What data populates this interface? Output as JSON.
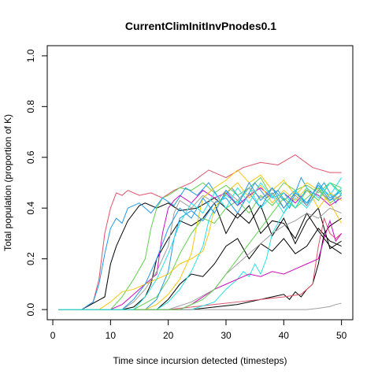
{
  "chart_data": {
    "type": "line",
    "title": "CurrentClimInitInvPnodes0.1",
    "xlabel": "Time since incursion detected (timesteps)",
    "ylabel": "Total population (proportion of K)",
    "xlim": [
      -0.96,
      51.96
    ],
    "ylim": [
      -0.04,
      1.04
    ],
    "xticks": [
      0,
      10,
      20,
      30,
      40,
      50
    ],
    "yticks": [
      0.0,
      0.2,
      0.4,
      0.6,
      0.8,
      1.0
    ],
    "xtick_labels": [
      "0",
      "10",
      "20",
      "30",
      "40",
      "50"
    ],
    "ytick_labels": [
      "0.0",
      "0.2",
      "0.4",
      "0.6",
      "0.8",
      "1.0"
    ],
    "grid": false,
    "legend": "none",
    "series": [
      {
        "color": "#000000",
        "x": [
          1,
          5,
          9,
          10,
          11,
          13,
          15,
          16,
          18,
          20,
          22,
          25,
          28,
          30,
          32,
          34,
          36,
          38,
          40,
          42,
          44,
          46,
          48,
          50
        ],
        "y": [
          0,
          0,
          0.05,
          0.18,
          0.25,
          0.35,
          0.41,
          0.42,
          0.4,
          0.42,
          0.39,
          0.4,
          0.44,
          0.4,
          0.36,
          0.41,
          0.3,
          0.35,
          0.34,
          0.28,
          0.38,
          0.31,
          0.25,
          0.22
        ]
      },
      {
        "color": "#000000",
        "x": [
          1,
          12,
          14,
          16,
          17,
          18,
          20,
          22,
          24,
          26,
          28,
          30,
          32,
          34,
          36,
          38,
          40,
          42,
          44,
          46,
          48,
          50
        ],
        "y": [
          0,
          0,
          0.01,
          0.05,
          0.1,
          0.2,
          0.28,
          0.35,
          0.33,
          0.36,
          0.42,
          0.3,
          0.38,
          0.34,
          0.41,
          0.29,
          0.36,
          0.26,
          0.35,
          0.4,
          0.24,
          0.27
        ]
      },
      {
        "color": "#000000",
        "x": [
          1,
          18,
          20,
          22,
          24,
          26,
          28,
          30,
          32,
          34,
          36,
          38,
          40,
          42,
          44,
          46,
          48,
          50
        ],
        "y": [
          0,
          0,
          0.04,
          0.1,
          0.14,
          0.13,
          0.18,
          0.25,
          0.28,
          0.2,
          0.26,
          0.23,
          0.28,
          0.22,
          0.25,
          0.32,
          0.27,
          0.25
        ]
      },
      {
        "color": "#000000",
        "x": [
          1,
          24,
          28,
          32,
          36,
          38,
          40,
          41,
          42,
          43,
          44,
          45,
          46,
          47,
          48,
          50
        ],
        "y": [
          0,
          0,
          0.01,
          0.02,
          0.04,
          0.05,
          0.06,
          0.04,
          0.07,
          0.05,
          0.08,
          0.1,
          0.18,
          0.3,
          0.33,
          0.36
        ]
      },
      {
        "color": "#DF536B",
        "x": [
          1,
          5,
          7,
          8,
          9,
          10,
          11,
          12,
          13,
          15,
          17,
          19,
          21,
          24,
          27,
          30,
          33,
          36,
          39,
          42,
          45,
          48,
          50
        ],
        "y": [
          0,
          0,
          0.03,
          0.12,
          0.3,
          0.4,
          0.46,
          0.45,
          0.47,
          0.45,
          0.46,
          0.44,
          0.47,
          0.5,
          0.55,
          0.52,
          0.56,
          0.58,
          0.57,
          0.61,
          0.56,
          0.54,
          0.54
        ]
      },
      {
        "color": "#DF536B",
        "x": [
          1,
          20,
          24,
          28,
          32,
          36,
          40,
          43,
          45,
          46,
          47,
          48,
          49,
          50
        ],
        "y": [
          0,
          0,
          0.01,
          0.02,
          0.03,
          0.04,
          0.05,
          0.06,
          0.1,
          0.25,
          0.36,
          0.3,
          0.28,
          0.3
        ]
      },
      {
        "color": "#61D04F",
        "x": [
          1,
          10,
          12,
          14,
          16,
          17,
          18,
          19,
          20,
          22,
          24,
          26,
          28,
          30,
          32,
          34,
          36,
          38,
          40,
          42,
          44,
          46,
          48,
          50
        ],
        "y": [
          0,
          0,
          0.05,
          0.12,
          0.2,
          0.32,
          0.4,
          0.44,
          0.45,
          0.48,
          0.47,
          0.5,
          0.46,
          0.49,
          0.45,
          0.48,
          0.52,
          0.44,
          0.5,
          0.47,
          0.49,
          0.46,
          0.5,
          0.48
        ]
      },
      {
        "color": "#61D04F",
        "x": [
          1,
          14,
          18,
          20,
          22,
          24,
          26,
          28,
          30,
          32,
          34,
          36,
          38,
          40,
          42,
          44,
          46,
          48,
          50
        ],
        "y": [
          0,
          0,
          0.05,
          0.12,
          0.22,
          0.3,
          0.36,
          0.34,
          0.4,
          0.43,
          0.38,
          0.45,
          0.41,
          0.46,
          0.4,
          0.44,
          0.48,
          0.42,
          0.45
        ]
      },
      {
        "color": "#2297E6",
        "x": [
          1,
          5,
          7,
          8,
          9,
          10,
          11,
          12,
          13,
          15,
          17,
          19,
          21,
          23,
          25,
          27,
          29,
          31,
          33,
          35,
          37,
          39,
          41,
          43,
          45,
          47,
          49,
          50
        ],
        "y": [
          0,
          0,
          0.03,
          0.1,
          0.22,
          0.32,
          0.36,
          0.34,
          0.4,
          0.42,
          0.38,
          0.44,
          0.41,
          0.48,
          0.45,
          0.5,
          0.43,
          0.48,
          0.42,
          0.5,
          0.44,
          0.47,
          0.4,
          0.52,
          0.44,
          0.5,
          0.42,
          0.46
        ]
      },
      {
        "color": "#2297E6",
        "x": [
          1,
          16,
          18,
          20,
          21,
          22,
          24,
          26,
          28,
          30,
          32,
          34,
          36,
          38,
          40,
          42,
          44,
          46,
          48,
          50
        ],
        "y": [
          0,
          0,
          0.04,
          0.15,
          0.28,
          0.36,
          0.39,
          0.35,
          0.42,
          0.44,
          0.38,
          0.46,
          0.4,
          0.48,
          0.43,
          0.47,
          0.41,
          0.5,
          0.44,
          0.47
        ]
      },
      {
        "color": "#28E2E5",
        "x": [
          1,
          18,
          20,
          22,
          24,
          26,
          27,
          28,
          30,
          32,
          34,
          36,
          38,
          40,
          42,
          44,
          46,
          48,
          50
        ],
        "y": [
          0,
          0,
          0.03,
          0.08,
          0.15,
          0.25,
          0.35,
          0.4,
          0.45,
          0.42,
          0.48,
          0.4,
          0.45,
          0.38,
          0.47,
          0.42,
          0.49,
          0.45,
          0.52
        ]
      },
      {
        "color": "#28E2E5",
        "x": [
          1,
          24,
          28,
          30,
          32,
          33,
          34,
          35,
          36,
          37,
          38,
          40,
          42,
          44,
          46,
          48,
          50
        ],
        "y": [
          0,
          0,
          0.03,
          0.08,
          0.12,
          0.15,
          0.13,
          0.18,
          0.14,
          0.2,
          0.3,
          0.38,
          0.44,
          0.4,
          0.47,
          0.43,
          0.48
        ]
      },
      {
        "color": "#CD0BBC",
        "x": [
          1,
          10,
          12,
          14,
          16,
          18,
          19,
          20,
          21,
          22,
          24,
          26,
          28,
          30,
          32,
          34,
          36,
          38,
          40,
          42,
          44,
          46,
          48,
          50
        ],
        "y": [
          0,
          0,
          0.02,
          0.06,
          0.1,
          0.14,
          0.3,
          0.4,
          0.43,
          0.45,
          0.42,
          0.47,
          0.44,
          0.46,
          0.41,
          0.45,
          0.48,
          0.44,
          0.46,
          0.42,
          0.47,
          0.45,
          0.41,
          0.44
        ]
      },
      {
        "color": "#CD0BBC",
        "x": [
          1,
          22,
          24,
          26,
          28,
          30,
          32,
          34,
          36,
          38,
          40,
          42,
          44,
          46,
          47,
          48,
          49,
          50
        ],
        "y": [
          0,
          0,
          0.02,
          0.05,
          0.08,
          0.1,
          0.12,
          0.14,
          0.13,
          0.15,
          0.14,
          0.16,
          0.18,
          0.2,
          0.28,
          0.35,
          0.27,
          0.3
        ]
      },
      {
        "color": "#F5C710",
        "x": [
          1,
          8,
          10,
          12,
          14,
          16,
          18,
          20,
          22,
          24,
          26,
          27,
          28,
          30,
          32,
          34,
          36,
          38,
          40,
          42,
          44,
          46,
          48,
          50
        ],
        "y": [
          0,
          0,
          0.03,
          0.07,
          0.08,
          0.1,
          0.12,
          0.14,
          0.18,
          0.2,
          0.23,
          0.3,
          0.4,
          0.46,
          0.5,
          0.44,
          0.49,
          0.42,
          0.47,
          0.43,
          0.48,
          0.4,
          0.46,
          0.43
        ]
      },
      {
        "color": "#F5C710",
        "x": [
          1,
          16,
          18,
          20,
          22,
          24,
          25,
          26,
          28,
          30,
          32,
          34,
          36,
          38,
          40,
          42,
          44,
          46,
          48,
          50
        ],
        "y": [
          0,
          0,
          0.02,
          0.06,
          0.12,
          0.22,
          0.34,
          0.44,
          0.48,
          0.51,
          0.55,
          0.5,
          0.53,
          0.47,
          0.51,
          0.45,
          0.5,
          0.47,
          0.42,
          0.34
        ]
      },
      {
        "color": "#9E9E9E",
        "x": [
          1,
          12,
          14,
          16,
          18,
          20,
          21,
          22,
          24,
          26,
          28,
          30,
          32,
          34,
          36,
          38,
          40,
          42,
          44,
          46,
          48,
          50
        ],
        "y": [
          0,
          0,
          0.03,
          0.08,
          0.15,
          0.25,
          0.38,
          0.43,
          0.4,
          0.45,
          0.42,
          0.47,
          0.43,
          0.48,
          0.44,
          0.46,
          0.4,
          0.45,
          0.41,
          0.47,
          0.43,
          0.45
        ]
      },
      {
        "color": "#9E9E9E",
        "x": [
          1,
          20,
          24,
          28,
          30,
          32,
          34,
          36,
          38,
          40,
          42,
          44,
          46,
          48,
          50
        ],
        "y": [
          0,
          0,
          0.03,
          0.08,
          0.14,
          0.18,
          0.22,
          0.26,
          0.3,
          0.33,
          0.35,
          0.38,
          0.36,
          0.4,
          0.38
        ]
      },
      {
        "color": "#9E9E9E",
        "x": [
          1,
          44,
          46,
          48,
          49,
          50
        ],
        "y": [
          0,
          0,
          0.005,
          0.012,
          0.02,
          0.025
        ]
      },
      {
        "color": "#2297E6",
        "x": [
          1,
          12,
          14,
          16,
          18,
          20,
          22,
          24,
          26,
          28,
          30,
          32,
          34,
          36,
          38,
          40,
          42,
          44,
          46,
          48,
          50
        ],
        "y": [
          0,
          0,
          0.04,
          0.1,
          0.2,
          0.32,
          0.4,
          0.36,
          0.44,
          0.38,
          0.47,
          0.41,
          0.5,
          0.43,
          0.48,
          0.4,
          0.46,
          0.42,
          0.49,
          0.43,
          0.47
        ]
      },
      {
        "color": "#61D04F",
        "x": [
          1,
          22,
          26,
          28,
          30,
          32,
          34,
          36,
          38,
          40,
          42,
          44,
          46,
          48,
          50
        ],
        "y": [
          0,
          0,
          0.04,
          0.08,
          0.14,
          0.2,
          0.26,
          0.32,
          0.38,
          0.44,
          0.4,
          0.47,
          0.43,
          0.5,
          0.46
        ]
      },
      {
        "color": "#28E2E5",
        "x": [
          1,
          14,
          16,
          18,
          20,
          22,
          24,
          26,
          28,
          30,
          32,
          34,
          36,
          38,
          40,
          42,
          44,
          46,
          48,
          50
        ],
        "y": [
          0,
          0,
          0.05,
          0.12,
          0.22,
          0.34,
          0.42,
          0.38,
          0.46,
          0.4,
          0.48,
          0.42,
          0.5,
          0.44,
          0.46,
          0.4,
          0.48,
          0.44,
          0.5,
          0.45
        ]
      }
    ]
  }
}
